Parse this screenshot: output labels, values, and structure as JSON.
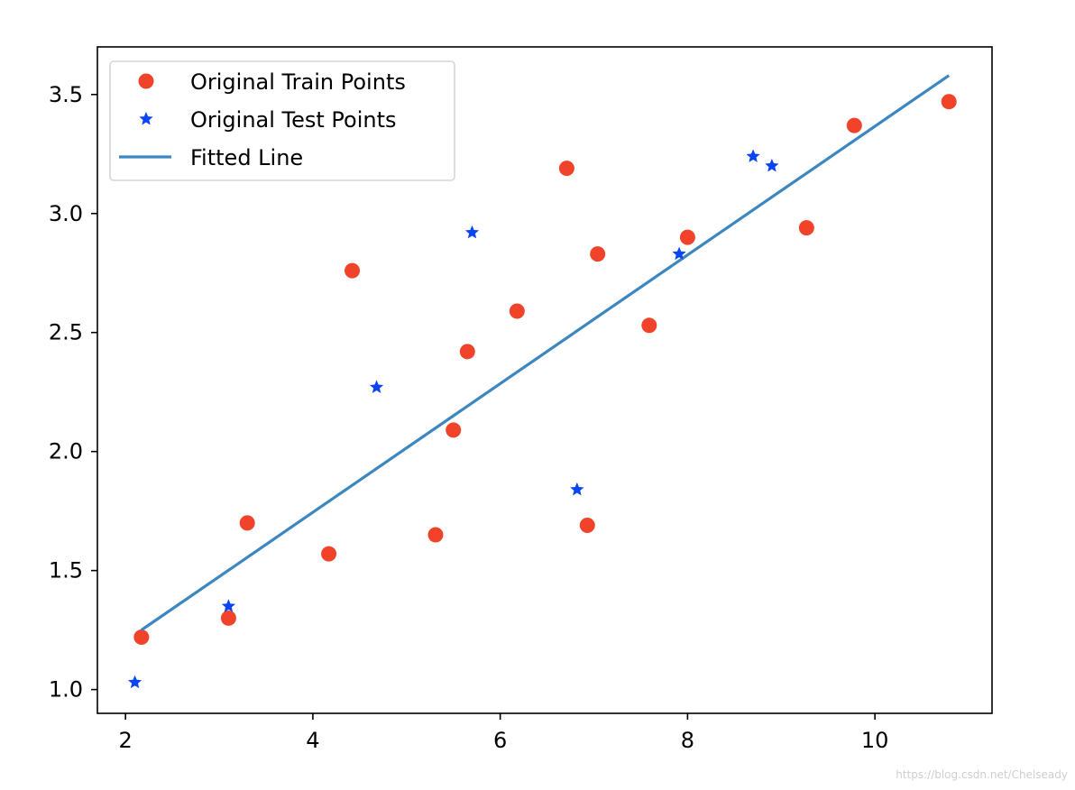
{
  "chart_data": {
    "type": "scatter",
    "title": "",
    "xlabel": "",
    "ylabel": "",
    "xlim": [
      1.7,
      11.25
    ],
    "ylim": [
      0.9,
      3.7
    ],
    "xticks": [
      2,
      4,
      6,
      8,
      10
    ],
    "yticks": [
      1.0,
      1.5,
      2.0,
      2.5,
      3.0,
      3.5
    ],
    "xtick_labels": [
      "2",
      "4",
      "6",
      "8",
      "10"
    ],
    "ytick_labels": [
      "1.0",
      "1.5",
      "2.0",
      "2.5",
      "3.0",
      "3.5"
    ],
    "grid": false,
    "legend_position": "top-left",
    "series": [
      {
        "name": "Original Train Points",
        "kind": "scatter",
        "marker": "circle",
        "color": "#f0432a",
        "points": [
          [
            2.17,
            1.22
          ],
          [
            3.1,
            1.3
          ],
          [
            3.3,
            1.7
          ],
          [
            4.17,
            1.57
          ],
          [
            4.42,
            2.76
          ],
          [
            5.31,
            1.65
          ],
          [
            5.5,
            2.09
          ],
          [
            5.65,
            2.42
          ],
          [
            6.18,
            2.59
          ],
          [
            6.71,
            3.19
          ],
          [
            6.93,
            1.69
          ],
          [
            7.04,
            2.83
          ],
          [
            7.59,
            2.53
          ],
          [
            8.0,
            2.9
          ],
          [
            9.27,
            2.94
          ],
          [
            9.78,
            3.37
          ],
          [
            10.79,
            3.47
          ]
        ]
      },
      {
        "name": "Original Test Points",
        "kind": "scatter",
        "marker": "star",
        "color": "#0a45f5",
        "points": [
          [
            2.1,
            1.03
          ],
          [
            3.1,
            1.35
          ],
          [
            4.68,
            2.27
          ],
          [
            5.7,
            2.92
          ],
          [
            6.82,
            1.84
          ],
          [
            7.91,
            2.83
          ],
          [
            8.7,
            3.24
          ],
          [
            8.9,
            3.2
          ]
        ]
      },
      {
        "name": "Fitted Line",
        "kind": "line",
        "color": "#3c87c0",
        "points": [
          [
            2.17,
            1.25
          ],
          [
            10.79,
            3.58
          ]
        ]
      }
    ]
  },
  "watermark": "https://blog.csdn.net/Chelseady"
}
